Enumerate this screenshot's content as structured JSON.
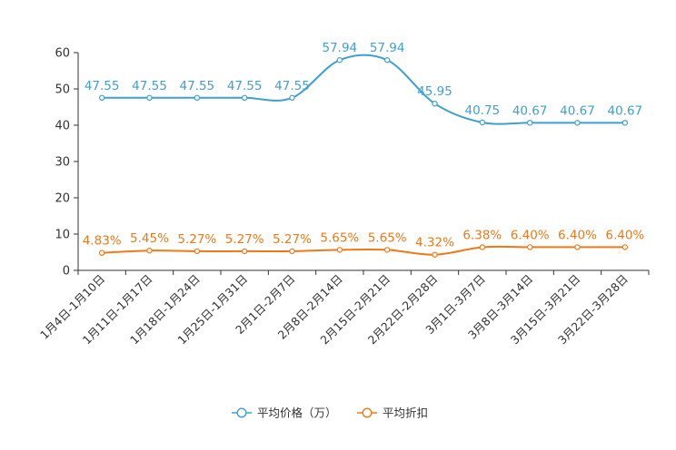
{
  "chart_data": {
    "type": "line",
    "title": "",
    "xlabel": "",
    "ylabel": "",
    "ylim": [
      0,
      60
    ],
    "yticks": [
      0,
      10,
      20,
      30,
      40,
      50,
      60
    ],
    "grid": false,
    "legend_position": "bottom",
    "categories": [
      "1月4日-1月10日",
      "1月11日-1月17日",
      "1月18日-1月24日",
      "1月25日-1月31日",
      "2月1日-2月7日",
      "2月8日-2月14日",
      "2月15日-2月21日",
      "2月22日-2月28日",
      "3月1日-3月7日",
      "3月8日-3月14日",
      "3月15日-3月21日",
      "3月22日-3月28日"
    ],
    "series": [
      {
        "name": "平均价格（万）",
        "color": "#3fa0d0",
        "values": [
          47.55,
          47.55,
          47.55,
          47.55,
          47.55,
          57.94,
          57.94,
          45.95,
          40.75,
          40.67,
          40.67,
          40.67
        ],
        "labels": [
          "47.55",
          "47.55",
          "47.55",
          "47.55",
          "47.55",
          "57.94",
          "57.94",
          "45.95",
          "40.75",
          "40.67",
          "40.67",
          "40.67"
        ]
      },
      {
        "name": "平均折扣",
        "color": "#f07818",
        "values": [
          4.83,
          5.45,
          5.27,
          5.27,
          5.27,
          5.65,
          5.65,
          4.32,
          6.38,
          6.4,
          6.4,
          6.4
        ],
        "labels": [
          "4.83%",
          "5.45%",
          "5.27%",
          "5.27%",
          "5.27%",
          "5.65%",
          "5.65%",
          "4.32%",
          "6.38%",
          "6.40%",
          "6.40%",
          "6.40%"
        ]
      }
    ]
  }
}
